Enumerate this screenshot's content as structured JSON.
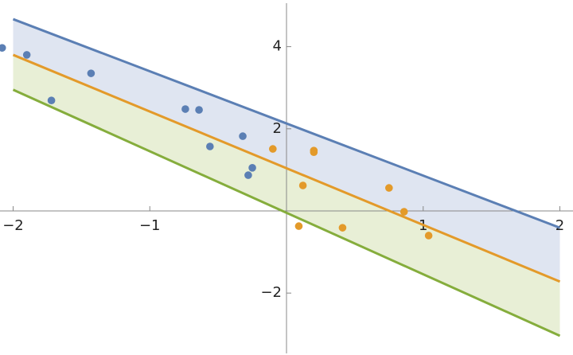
{
  "chart_data": {
    "type": "line",
    "xlim": [
      -2.096,
      2.096
    ],
    "ylim": [
      -3.508,
      5.136
    ],
    "xticks": [
      {
        "value": -2,
        "label": "−2"
      },
      {
        "value": -1,
        "label": "−1"
      },
      1,
      2
    ],
    "yticks": [
      {
        "value": -2,
        "label": "−2"
      },
      2,
      4
    ],
    "series": [
      {
        "color": "#5b7fb4",
        "band_fill": "#dfe5f1",
        "x": [
          -2,
          2
        ],
        "values": [
          4.67,
          -0.41
        ]
      },
      {
        "color": "#e39a2a",
        "band_fill": "#e8efd6",
        "x": [
          -2,
          2
        ],
        "values": [
          3.8,
          -1.72
        ]
      },
      {
        "color": "#85ad3c",
        "x": [
          -2,
          2
        ],
        "values": [
          2.95,
          -3.04
        ]
      }
    ],
    "points": [
      {
        "color": "#5b7fb4",
        "x": [
          -2.08,
          -1.9,
          -1.72,
          -1.43,
          -0.74,
          -0.64,
          -0.56,
          -0.32,
          -0.25,
          -0.28
        ],
        "values": [
          3.97,
          3.8,
          2.69,
          3.35,
          2.48,
          2.46,
          1.57,
          1.82,
          1.05,
          0.87
        ]
      },
      {
        "color": "#e39a2a",
        "x": [
          -0.1,
          0.2,
          0.2,
          0.12,
          0.09,
          0.41,
          0.75,
          0.86,
          1.04
        ],
        "values": [
          1.51,
          1.47,
          1.43,
          0.62,
          -0.37,
          -0.41,
          0.56,
          -0.02,
          -0.6
        ]
      }
    ]
  }
}
